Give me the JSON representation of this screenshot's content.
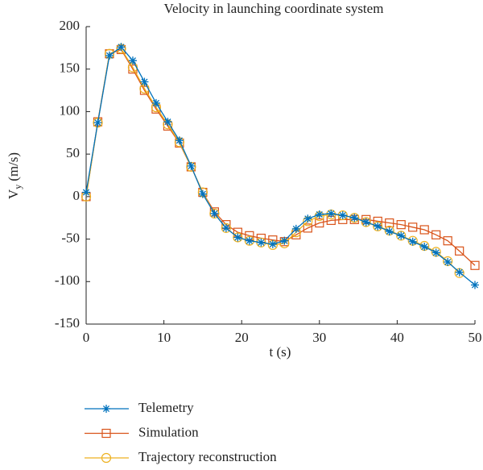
{
  "chart_data": {
    "type": "line",
    "title": "Velocity in launching coordinate system",
    "xlabel": "t (s)",
    "ylabel": {
      "symbol": "V",
      "subscript": "y",
      "unit": "(m/s)"
    },
    "x": [
      0,
      1.5,
      3,
      4.5,
      6,
      7.5,
      9,
      10.5,
      12,
      13.5,
      15,
      16.5,
      18,
      19.5,
      21,
      22.5,
      24,
      25.5,
      27,
      28.5,
      30,
      31.5,
      33,
      34.5,
      36,
      37.5,
      39,
      40.5,
      42,
      43.5,
      45,
      46.5,
      48,
      50
    ],
    "series": [
      {
        "name": "Telemetry",
        "color": "#0072bd",
        "marker": "star",
        "values": [
          5,
          87,
          166,
          176,
          160,
          135,
          110,
          88,
          66,
          36,
          3,
          -20,
          -37,
          -48,
          -52,
          -54,
          -56,
          -52,
          -38,
          -26,
          -21,
          -20,
          -22,
          -25,
          -30,
          -35,
          -41,
          -46,
          -53,
          -59,
          -66,
          -77,
          -89,
          -104
        ]
      },
      {
        "name": "Simulation",
        "color": "#d95319",
        "marker": "square",
        "values": [
          0,
          88,
          168,
          173,
          150,
          125,
          103,
          83,
          63,
          35,
          5,
          -18,
          -33,
          -42,
          -46,
          -49,
          -51,
          -53,
          -45,
          -37,
          -31,
          -28,
          -27,
          -27,
          -27,
          -29,
          -31,
          -33,
          -36,
          -39,
          -45,
          -52,
          -64,
          -81
        ]
      },
      {
        "name": "Trajectory reconstruction",
        "color": "#edb120",
        "marker": "circle",
        "values": [
          0,
          87,
          168,
          174,
          152,
          127,
          105,
          85,
          64,
          35,
          5,
          -20,
          -37,
          -48,
          -52,
          -54,
          -57,
          -55,
          -42,
          -29,
          -23,
          -21,
          -22,
          -25,
          -30,
          -35,
          -40,
          -46,
          -52,
          -58,
          -65,
          -76,
          -90,
          null
        ]
      }
    ],
    "xlim": [
      0,
      50
    ],
    "xticks": [
      0,
      10,
      20,
      30,
      40,
      50
    ],
    "ylim": [
      -150,
      200
    ],
    "yticks": [
      -150,
      -100,
      -50,
      0,
      50,
      100,
      150,
      200
    ],
    "grid": false,
    "legend": "below"
  }
}
